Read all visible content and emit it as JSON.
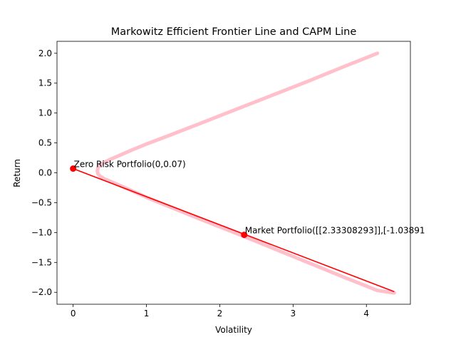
{
  "chart_data": {
    "type": "line",
    "title": "Markowitz Efficient Frontier Line and CAPM Line",
    "xlabel": "Volatility",
    "ylabel": "Return",
    "xlim": [
      -0.22,
      4.6
    ],
    "ylim": [
      -2.2,
      2.2
    ],
    "xticks": [
      0,
      1,
      2,
      3,
      4
    ],
    "xtick_labels": [
      "0",
      "1",
      "2",
      "3",
      "4"
    ],
    "yticks": [
      -2.0,
      -1.5,
      -1.0,
      -0.5,
      0.0,
      0.5,
      1.0,
      1.5,
      2.0
    ],
    "ytick_labels": [
      "−2.0",
      "−1.5",
      "−1.0",
      "−0.5",
      "0.0",
      "0.5",
      "1.0",
      "1.5",
      "2.0"
    ],
    "grid": false,
    "colors": {
      "frontier": "#ffc0cb",
      "capm": "#ff0000",
      "points": "#ff0000"
    },
    "series": [
      {
        "kind": "efficient-frontier",
        "x": [
          4.15,
          3.7,
          3.2,
          2.7,
          2.2,
          1.7,
          1.3,
          1.0,
          0.8,
          0.65,
          0.5,
          0.42,
          0.37,
          0.34,
          0.33,
          0.34,
          0.37,
          0.42,
          0.5,
          0.65,
          0.8,
          1.0,
          1.3,
          1.7,
          2.2,
          2.7,
          3.2,
          3.7,
          4.15,
          4.38
        ],
        "y": [
          2.0,
          1.78,
          1.53,
          1.29,
          1.05,
          0.81,
          0.62,
          0.48,
          0.38,
          0.3,
          0.22,
          0.17,
          0.13,
          0.09,
          0.03,
          -0.02,
          -0.06,
          -0.1,
          -0.14,
          -0.22,
          -0.3,
          -0.41,
          -0.56,
          -0.76,
          -1.0,
          -1.25,
          -1.5,
          -1.75,
          -1.97,
          -2.01
        ]
      },
      {
        "kind": "capm-line",
        "x": [
          0,
          4.38
        ],
        "y": [
          0.07,
          -1.99
        ]
      }
    ],
    "points": [
      {
        "x": 0,
        "y": 0.07,
        "label": "Zero Risk Portfolio(0,0.07)"
      },
      {
        "x": 2.33308293,
        "y": -1.03891,
        "label": "Market Portfolio([[2.33308293]],[-1.03891"
      }
    ]
  }
}
